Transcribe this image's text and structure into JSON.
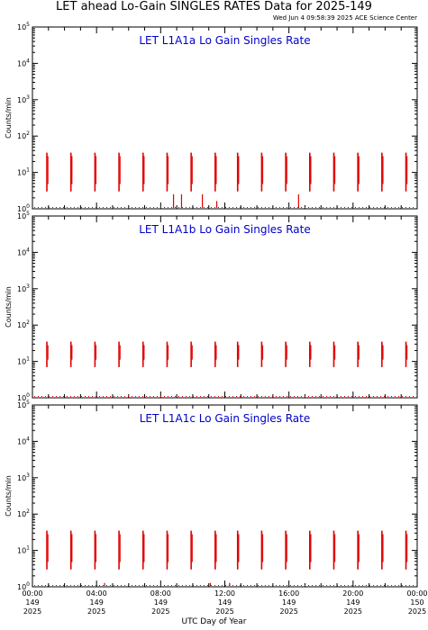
{
  "header": {
    "title": "LET ahead Lo-Gain SINGLES RATES Data for 2025-149",
    "timestamp": "Wed Jun  4 09:58:39 2025 ACE Science Center"
  },
  "chart_data": [
    {
      "type": "scatter",
      "title": "LET L1A1a Lo Gain Singles Rate",
      "ylabel": "Counts/min",
      "yscale": "log",
      "ylim": [
        1,
        100000
      ],
      "xlim": [
        0,
        24
      ],
      "color": "#e00000",
      "title_color": "#0000cc",
      "bursts_hours": [
        0.9,
        2.4,
        3.9,
        5.4,
        6.9,
        8.4,
        9.9,
        11.4,
        12.8,
        14.3,
        15.8,
        17.3,
        18.8,
        20.3,
        21.8,
        23.3
      ],
      "burst_peak": 35,
      "burst_low": 3,
      "spikes": [
        {
          "x": 8.8,
          "y": 2
        },
        {
          "x": 9.3,
          "y": 2
        },
        {
          "x": 10.6,
          "y": 2
        },
        {
          "x": 11.5,
          "y": 1.3
        },
        {
          "x": 16.6,
          "y": 2
        }
      ]
    },
    {
      "type": "scatter",
      "title": "LET L1A1b Lo Gain Singles Rate",
      "ylabel": "Counts/min",
      "yscale": "log",
      "ylim": [
        1,
        100000
      ],
      "xlim": [
        0,
        24
      ],
      "color": "#e00000",
      "title_color": "#0000cc",
      "bursts_hours": [
        0.9,
        2.4,
        3.9,
        5.4,
        6.9,
        8.4,
        9.9,
        11.4,
        12.8,
        14.3,
        15.8,
        17.3,
        18.8,
        20.3,
        21.8,
        23.3
      ],
      "burst_peak": 35,
      "burst_low": 7,
      "spikes": []
    },
    {
      "type": "scatter",
      "title": "LET L1A1c Lo Gain Singles Rate",
      "ylabel": "Counts/min",
      "yscale": "log",
      "ylim": [
        1,
        100000
      ],
      "xlim": [
        0,
        24
      ],
      "color": "#e00000",
      "title_color": "#0000cc",
      "bursts_hours": [
        0.9,
        2.4,
        3.9,
        5.4,
        6.9,
        8.4,
        9.9,
        11.4,
        12.8,
        14.3,
        15.8,
        17.3,
        18.8,
        20.3,
        21.8,
        23.3
      ],
      "burst_peak": 35,
      "burst_low": 3,
      "spikes": [
        {
          "x": 4.5,
          "y": 1
        },
        {
          "x": 11.1,
          "y": 1
        },
        {
          "x": 12.3,
          "y": 1
        }
      ]
    }
  ],
  "x_axis": {
    "title": "UTC Day of Year",
    "ticks": [
      {
        "hour": 0,
        "time": "00:00",
        "doy": "149",
        "year": "2025"
      },
      {
        "hour": 4,
        "time": "04:00",
        "doy": "149",
        "year": "2025"
      },
      {
        "hour": 8,
        "time": "08:00",
        "doy": "149",
        "year": "2025"
      },
      {
        "hour": 12,
        "time": "12:00",
        "doy": "149",
        "year": "2025"
      },
      {
        "hour": 16,
        "time": "16:00",
        "doy": "149",
        "year": "2025"
      },
      {
        "hour": 20,
        "time": "20:00",
        "doy": "149",
        "year": "2025"
      },
      {
        "hour": 24,
        "time": "00:00",
        "doy": "150",
        "year": "2025"
      }
    ]
  }
}
